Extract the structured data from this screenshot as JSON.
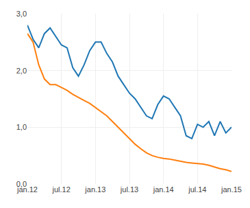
{
  "chart_data": {
    "type": "line",
    "categories": [
      "jan.12",
      null,
      null,
      null,
      null,
      null,
      "jul.12",
      null,
      null,
      null,
      null,
      null,
      "jan.13",
      null,
      null,
      null,
      null,
      null,
      "jul.13",
      null,
      null,
      null,
      null,
      null,
      "jan.14",
      null,
      null,
      null,
      null,
      null,
      "jul.14",
      null,
      null,
      null,
      null,
      null,
      "jan.15"
    ],
    "series": [
      {
        "values": [
          2.8,
          2.55,
          2.4,
          2.65,
          2.75,
          2.6,
          2.45,
          2.4,
          2.05,
          1.9,
          2.1,
          2.35,
          2.5,
          2.5,
          2.3,
          2.15,
          1.9,
          1.75,
          1.6,
          1.5,
          1.35,
          1.2,
          1.15,
          1.4,
          1.55,
          1.5,
          1.35,
          1.2,
          0.85,
          0.8,
          1.05,
          1.0,
          1.1,
          0.85,
          1.1,
          0.9,
          1.0
        ]
      },
      {
        "values": [
          2.65,
          2.5,
          2.1,
          1.85,
          1.75,
          1.75,
          1.7,
          1.65,
          1.58,
          1.52,
          1.47,
          1.42,
          1.35,
          1.28,
          1.2,
          1.1,
          1.0,
          0.9,
          0.8,
          0.7,
          0.62,
          0.55,
          0.5,
          0.47,
          0.45,
          0.44,
          0.42,
          0.4,
          0.38,
          0.37,
          0.36,
          0.35,
          0.33,
          0.3,
          0.27,
          0.25,
          0.22
        ]
      }
    ],
    "ylim": [
      0.0,
      3.0
    ],
    "yticks": [
      {
        "value": 0.0,
        "label": "0,0"
      },
      {
        "value": 1.0,
        "label": "1,0"
      },
      {
        "value": 2.0,
        "label": "2,0"
      },
      {
        "value": 3.0,
        "label": "3,0"
      }
    ],
    "grid": true
  }
}
